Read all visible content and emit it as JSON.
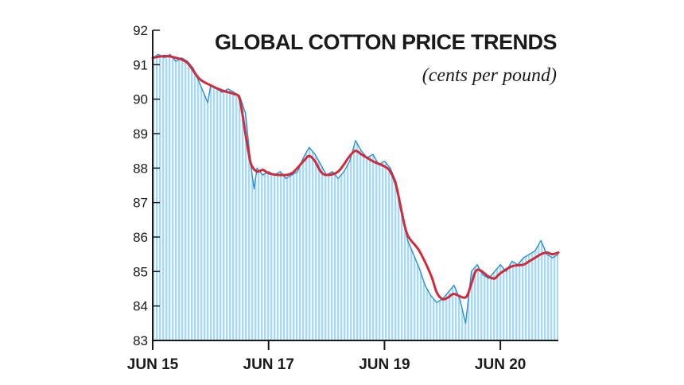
{
  "chart_data": {
    "type": "area",
    "title": "GLOBAL COTTON PRICE TRENDS",
    "subtitle": "(cents per pound)",
    "xlabel": "",
    "ylabel": "",
    "ylim": [
      83,
      92
    ],
    "y_ticks": [
      "83",
      "84",
      "85",
      "86",
      "87",
      "88",
      "89",
      "90",
      "91",
      "92"
    ],
    "x_ticks": [
      {
        "label": "JUN 15",
        "x": 0
      },
      {
        "label": "JUN 17",
        "x": 40
      },
      {
        "label": "JUN 19",
        "x": 80
      },
      {
        "label": "JUN 20",
        "x": 120
      }
    ],
    "x_range": [
      0,
      140
    ],
    "grid": false,
    "legend": "none",
    "colors": {
      "area_fill": "#a9d8f2",
      "area_stripe": "#7fc0e6",
      "daily_line": "#2a8fd0",
      "trend_line": "#d12a3a",
      "axis": "#1a1a1a"
    },
    "series": [
      {
        "kind": "daily",
        "x": [
          0,
          2,
          4,
          6,
          8,
          10,
          12,
          14,
          16,
          18,
          19,
          20,
          22,
          24,
          26,
          28,
          30,
          32,
          34,
          35,
          36,
          38,
          40,
          42,
          44,
          46,
          48,
          50,
          52,
          54,
          56,
          58,
          60,
          62,
          64,
          66,
          68,
          70,
          72,
          74,
          76,
          78,
          80,
          82,
          84,
          86,
          88,
          90,
          92,
          94,
          96,
          98,
          100,
          102,
          104,
          106,
          108,
          110,
          112,
          114,
          116,
          118,
          120,
          122,
          124,
          126,
          128,
          130,
          132,
          134,
          136,
          138,
          140
        ],
        "y": [
          91.2,
          91.3,
          91.2,
          91.3,
          91.1,
          91.2,
          91.1,
          90.9,
          90.5,
          90.1,
          89.9,
          90.4,
          90.3,
          90.2,
          90.3,
          90.2,
          90.1,
          89.6,
          88.0,
          87.4,
          88.0,
          87.8,
          87.9,
          87.8,
          87.9,
          87.7,
          87.8,
          87.9,
          88.3,
          88.6,
          88.4,
          88.1,
          87.8,
          87.9,
          87.7,
          87.9,
          88.2,
          88.8,
          88.5,
          88.3,
          88.4,
          88.1,
          88.2,
          88.0,
          87.6,
          86.8,
          85.9,
          85.5,
          85.1,
          84.6,
          84.3,
          84.1,
          84.2,
          84.4,
          84.6,
          84.2,
          83.5,
          85.0,
          85.2,
          84.9,
          84.8,
          85.0,
          85.2,
          85.0,
          85.3,
          85.2,
          85.4,
          85.5,
          85.6,
          85.9,
          85.5,
          85.4,
          85.5
        ]
      },
      {
        "kind": "trend",
        "x": [
          0,
          4,
          8,
          12,
          16,
          20,
          24,
          28,
          30,
          32,
          33,
          34,
          36,
          38,
          40,
          44,
          48,
          52,
          54,
          56,
          58,
          60,
          64,
          68,
          70,
          72,
          76,
          80,
          82,
          84,
          86,
          88,
          92,
          96,
          98,
          100,
          102,
          104,
          108,
          110,
          112,
          116,
          118,
          120,
          124,
          128,
          130,
          132,
          134,
          136,
          138,
          140
        ],
        "y": [
          91.2,
          91.25,
          91.2,
          91.05,
          90.6,
          90.4,
          90.25,
          90.15,
          90.0,
          89.0,
          88.5,
          88.1,
          87.9,
          87.95,
          87.85,
          87.8,
          87.85,
          88.2,
          88.35,
          88.2,
          87.9,
          87.8,
          87.9,
          88.35,
          88.5,
          88.4,
          88.2,
          88.05,
          87.9,
          87.5,
          86.7,
          86.05,
          85.6,
          84.9,
          84.4,
          84.2,
          84.25,
          84.35,
          84.25,
          84.65,
          85.05,
          84.85,
          84.8,
          84.95,
          85.15,
          85.2,
          85.3,
          85.4,
          85.5,
          85.55,
          85.5,
          85.55
        ]
      }
    ]
  }
}
